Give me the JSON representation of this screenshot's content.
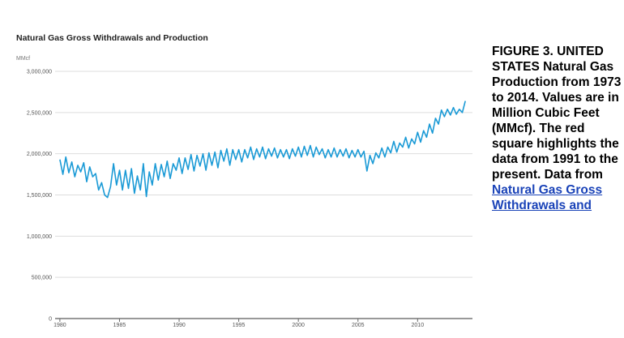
{
  "caption": {
    "text": "FIGURE 3. UNITED STATES Natural Gas Production from 1973 to 2014. Values are in Million Cubic Feet (MMcf). The red square highlights the data from 1991 to the present. Data from ",
    "link_text": "Natural Gas Gross Withdrawals and"
  },
  "colors": {
    "series": "#1a9ad6",
    "gridline": "#dddddd",
    "link": "#1a43b8"
  },
  "chart_data": {
    "type": "line",
    "title": "Natural Gas Gross Withdrawals and Production",
    "ylabel": "MMcf",
    "xlabel": "",
    "xlim": [
      1979.6,
      2014.6
    ],
    "ylim": [
      0,
      3000000
    ],
    "y_ticks": [
      {
        "value": 0,
        "label": "0"
      },
      {
        "value": 500000,
        "label": "500,000"
      },
      {
        "value": 1000000,
        "label": "1,000,000"
      },
      {
        "value": 1500000,
        "label": "1,500,000"
      },
      {
        "value": 2000000,
        "label": "2,000,000"
      },
      {
        "value": 2500000,
        "label": "2,500,000"
      },
      {
        "value": 3000000,
        "label": "3,000,000"
      }
    ],
    "x_ticks": [
      {
        "value": 1980,
        "label": "1980"
      },
      {
        "value": 1985,
        "label": "1985"
      },
      {
        "value": 1990,
        "label": "1990"
      },
      {
        "value": 1995,
        "label": "1995"
      },
      {
        "value": 2000,
        "label": "2000"
      },
      {
        "value": 2005,
        "label": "2005"
      },
      {
        "value": 2010,
        "label": "2010"
      }
    ],
    "grid": true,
    "legend": "none",
    "series": [
      {
        "points": [
          [
            1980.0,
            1930000
          ],
          [
            1980.25,
            1750000
          ],
          [
            1980.5,
            1960000
          ],
          [
            1980.75,
            1770000
          ],
          [
            1981.0,
            1900000
          ],
          [
            1981.25,
            1720000
          ],
          [
            1981.5,
            1860000
          ],
          [
            1981.75,
            1780000
          ],
          [
            1982.0,
            1890000
          ],
          [
            1982.25,
            1660000
          ],
          [
            1982.5,
            1840000
          ],
          [
            1982.75,
            1720000
          ],
          [
            1983.0,
            1760000
          ],
          [
            1983.25,
            1560000
          ],
          [
            1983.5,
            1650000
          ],
          [
            1983.75,
            1500000
          ],
          [
            1984.0,
            1470000
          ],
          [
            1984.25,
            1600000
          ],
          [
            1984.5,
            1880000
          ],
          [
            1984.75,
            1620000
          ],
          [
            1985.0,
            1800000
          ],
          [
            1985.25,
            1560000
          ],
          [
            1985.5,
            1800000
          ],
          [
            1985.75,
            1580000
          ],
          [
            1986.0,
            1820000
          ],
          [
            1986.25,
            1520000
          ],
          [
            1986.5,
            1730000
          ],
          [
            1986.75,
            1560000
          ],
          [
            1987.0,
            1880000
          ],
          [
            1987.25,
            1480000
          ],
          [
            1987.5,
            1780000
          ],
          [
            1987.75,
            1620000
          ],
          [
            1988.0,
            1880000
          ],
          [
            1988.25,
            1680000
          ],
          [
            1988.5,
            1870000
          ],
          [
            1988.75,
            1720000
          ],
          [
            1989.0,
            1910000
          ],
          [
            1989.25,
            1700000
          ],
          [
            1989.5,
            1880000
          ],
          [
            1989.75,
            1800000
          ],
          [
            1990.0,
            1950000
          ],
          [
            1990.25,
            1760000
          ],
          [
            1990.5,
            1950000
          ],
          [
            1990.75,
            1810000
          ],
          [
            1991.0,
            1990000
          ],
          [
            1991.25,
            1790000
          ],
          [
            1991.5,
            1980000
          ],
          [
            1991.75,
            1850000
          ],
          [
            1992.0,
            2000000
          ],
          [
            1992.25,
            1800000
          ],
          [
            1992.5,
            2010000
          ],
          [
            1992.75,
            1860000
          ],
          [
            1993.0,
            2020000
          ],
          [
            1993.25,
            1830000
          ],
          [
            1993.5,
            2040000
          ],
          [
            1993.75,
            1910000
          ],
          [
            1994.0,
            2060000
          ],
          [
            1994.25,
            1860000
          ],
          [
            1994.5,
            2050000
          ],
          [
            1994.75,
            1930000
          ],
          [
            1995.0,
            2050000
          ],
          [
            1995.25,
            1900000
          ],
          [
            1995.5,
            2050000
          ],
          [
            1995.75,
            1950000
          ],
          [
            1996.0,
            2080000
          ],
          [
            1996.25,
            1930000
          ],
          [
            1996.5,
            2060000
          ],
          [
            1996.75,
            1960000
          ],
          [
            1997.0,
            2080000
          ],
          [
            1997.25,
            1940000
          ],
          [
            1997.5,
            2060000
          ],
          [
            1997.75,
            1970000
          ],
          [
            1998.0,
            2070000
          ],
          [
            1998.25,
            1950000
          ],
          [
            1998.5,
            2050000
          ],
          [
            1998.75,
            1960000
          ],
          [
            1999.0,
            2050000
          ],
          [
            1999.25,
            1940000
          ],
          [
            1999.5,
            2060000
          ],
          [
            1999.75,
            1970000
          ],
          [
            2000.0,
            2080000
          ],
          [
            2000.25,
            1960000
          ],
          [
            2000.5,
            2090000
          ],
          [
            2000.75,
            1980000
          ],
          [
            2001.0,
            2100000
          ],
          [
            2001.25,
            1960000
          ],
          [
            2001.5,
            2080000
          ],
          [
            2001.75,
            1990000
          ],
          [
            2002.0,
            2060000
          ],
          [
            2002.25,
            1950000
          ],
          [
            2002.5,
            2050000
          ],
          [
            2002.75,
            1960000
          ],
          [
            2003.0,
            2070000
          ],
          [
            2003.25,
            1960000
          ],
          [
            2003.5,
            2050000
          ],
          [
            2003.75,
            1970000
          ],
          [
            2004.0,
            2060000
          ],
          [
            2004.25,
            1950000
          ],
          [
            2004.5,
            2040000
          ],
          [
            2004.75,
            1960000
          ],
          [
            2005.0,
            2050000
          ],
          [
            2005.25,
            1960000
          ],
          [
            2005.5,
            2030000
          ],
          [
            2005.75,
            1790000
          ],
          [
            2006.0,
            1980000
          ],
          [
            2006.25,
            1880000
          ],
          [
            2006.5,
            2010000
          ],
          [
            2006.75,
            1950000
          ],
          [
            2007.0,
            2070000
          ],
          [
            2007.25,
            1960000
          ],
          [
            2007.5,
            2080000
          ],
          [
            2007.75,
            2010000
          ],
          [
            2008.0,
            2150000
          ],
          [
            2008.25,
            2020000
          ],
          [
            2008.5,
            2130000
          ],
          [
            2008.75,
            2080000
          ],
          [
            2009.0,
            2200000
          ],
          [
            2009.25,
            2070000
          ],
          [
            2009.5,
            2180000
          ],
          [
            2009.75,
            2120000
          ],
          [
            2010.0,
            2260000
          ],
          [
            2010.25,
            2140000
          ],
          [
            2010.5,
            2280000
          ],
          [
            2010.75,
            2200000
          ],
          [
            2011.0,
            2360000
          ],
          [
            2011.25,
            2250000
          ],
          [
            2011.5,
            2430000
          ],
          [
            2011.75,
            2360000
          ],
          [
            2012.0,
            2530000
          ],
          [
            2012.25,
            2450000
          ],
          [
            2012.5,
            2540000
          ],
          [
            2012.75,
            2470000
          ],
          [
            2013.0,
            2560000
          ],
          [
            2013.25,
            2480000
          ],
          [
            2013.5,
            2540000
          ],
          [
            2013.75,
            2500000
          ],
          [
            2014.0,
            2640000
          ]
        ]
      }
    ]
  }
}
